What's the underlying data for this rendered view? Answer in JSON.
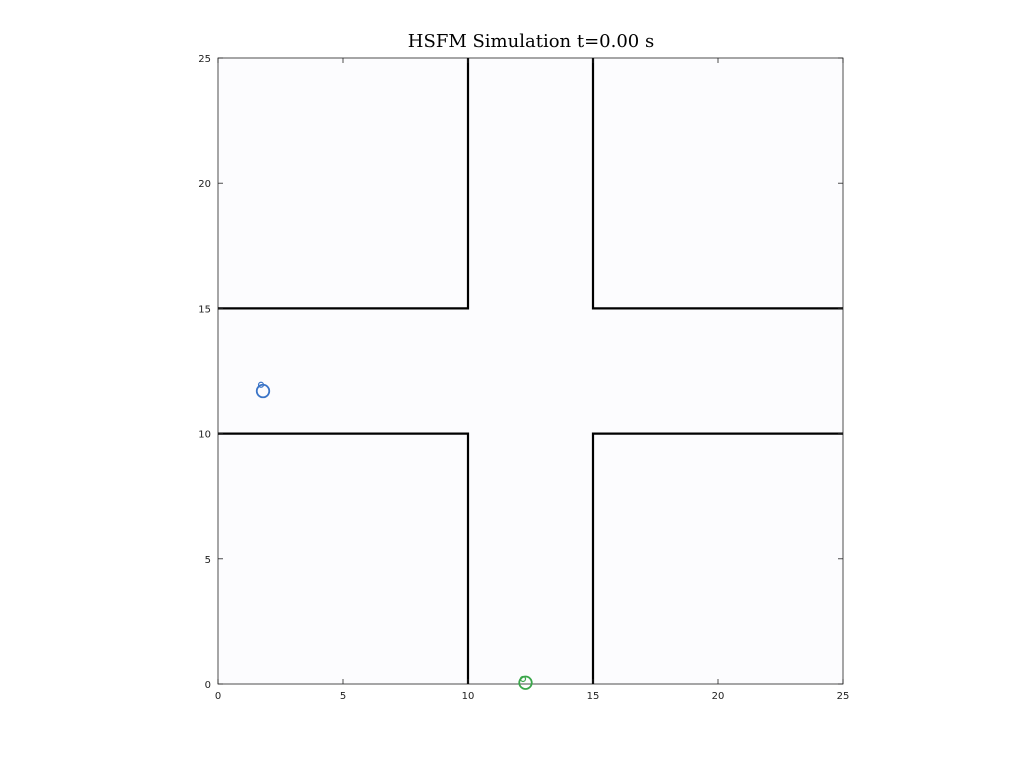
{
  "chart_data": {
    "type": "scatter",
    "title": "HSFM Simulation t=0.00 s",
    "xlabel": "",
    "ylabel": "",
    "xlim": [
      0,
      25
    ],
    "ylim": [
      0,
      25
    ],
    "x_ticks": [
      0,
      5,
      10,
      15,
      20,
      25
    ],
    "y_ticks": [
      0,
      5,
      10,
      15,
      20,
      25
    ],
    "grid": false,
    "walls": [
      {
        "points": [
          [
            10,
            25
          ],
          [
            10,
            15
          ],
          [
            0,
            15
          ]
        ]
      },
      {
        "points": [
          [
            15,
            25
          ],
          [
            15,
            15
          ],
          [
            25,
            15
          ]
        ]
      },
      {
        "points": [
          [
            0,
            10
          ],
          [
            10,
            10
          ],
          [
            10,
            0
          ]
        ]
      },
      {
        "points": [
          [
            25,
            10
          ],
          [
            15,
            10
          ],
          [
            15,
            0
          ]
        ]
      }
    ],
    "agents": [
      {
        "x": 1.8,
        "y": 11.7,
        "radius": 0.25,
        "head_x": 1.72,
        "head_y": 11.95,
        "color": "#3a74c7"
      },
      {
        "x": 12.3,
        "y": 0.05,
        "radius": 0.25,
        "head_x": 12.2,
        "head_y": 0.2,
        "color": "#3aa64a"
      }
    ]
  },
  "colors": {
    "background": "#ffffff",
    "axes_background": "#fcfcfe",
    "axis": "#222222",
    "wall": "#000000"
  }
}
